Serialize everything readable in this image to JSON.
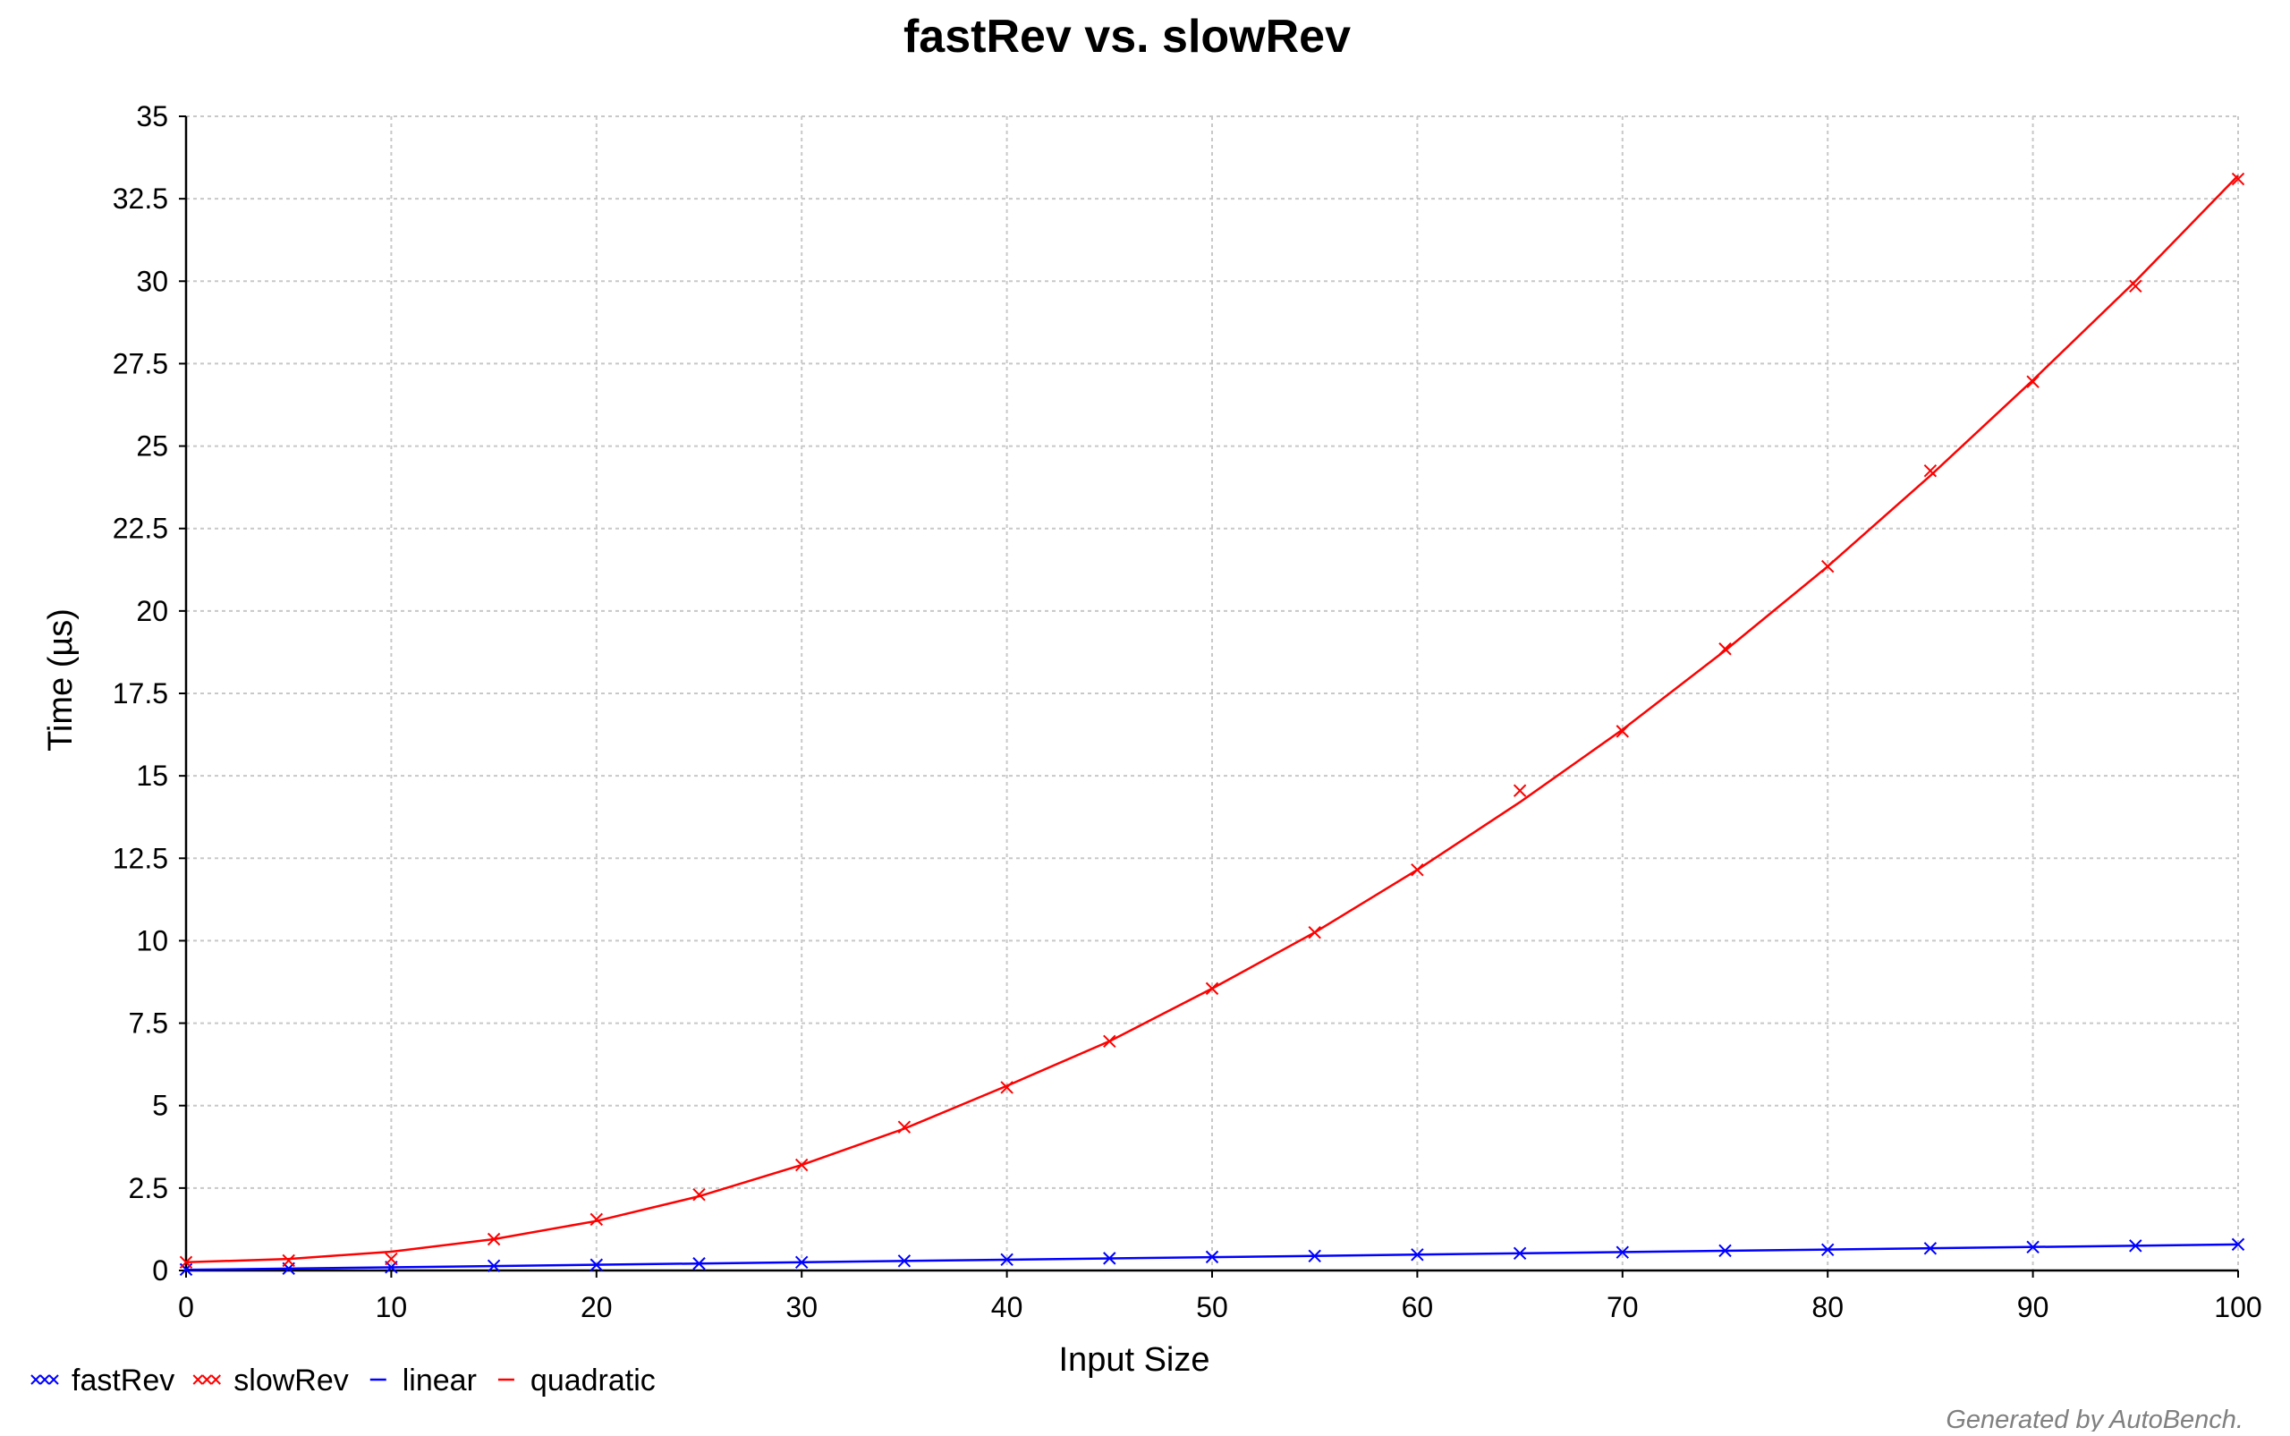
{
  "chart_data": {
    "type": "line",
    "title": "fastRev vs. slowRev",
    "xlabel": "Input Size",
    "ylabel": "Time (µs)",
    "xlim": [
      0,
      100
    ],
    "ylim": [
      0,
      35
    ],
    "x_ticks": [
      0,
      10,
      20,
      30,
      40,
      50,
      60,
      70,
      80,
      90,
      100
    ],
    "x_tick_labels": [
      "0",
      "10",
      "20",
      "30",
      "40",
      "50",
      "60",
      "70",
      "80",
      "90",
      "100"
    ],
    "y_ticks": [
      0,
      2.5,
      5,
      7.5,
      10,
      12.5,
      15,
      17.5,
      20,
      22.5,
      25,
      27.5,
      30,
      32.5,
      35
    ],
    "y_tick_labels": [
      "0",
      "2.5",
      "5",
      "7.5",
      "10",
      "12.5",
      "15",
      "17.5",
      "20",
      "22.5",
      "25",
      "27.5",
      "30",
      "32.5",
      "35"
    ],
    "grid": true,
    "legend_position": "bottom-left",
    "series": [
      {
        "name": "fastRev",
        "kind": "points",
        "marker": "x",
        "color": "#0000ff",
        "x": [
          0,
          5,
          10,
          15,
          20,
          25,
          30,
          35,
          40,
          45,
          50,
          55,
          60,
          65,
          70,
          75,
          80,
          85,
          90,
          95,
          100
        ],
        "y": [
          0.03,
          0.06,
          0.1,
          0.14,
          0.17,
          0.21,
          0.25,
          0.29,
          0.33,
          0.37,
          0.41,
          0.44,
          0.48,
          0.52,
          0.55,
          0.6,
          0.63,
          0.67,
          0.71,
          0.75,
          0.79
        ]
      },
      {
        "name": "slowRev",
        "kind": "points",
        "marker": "x",
        "color": "#ff0000",
        "x": [
          0,
          5,
          10,
          15,
          20,
          25,
          30,
          35,
          40,
          45,
          50,
          55,
          60,
          65,
          70,
          75,
          80,
          85,
          90,
          95,
          100
        ],
        "y": [
          0.25,
          0.3,
          0.35,
          0.95,
          1.55,
          2.3,
          3.2,
          4.35,
          5.55,
          6.95,
          8.55,
          10.25,
          12.15,
          14.55,
          16.35,
          18.85,
          21.35,
          24.25,
          26.95,
          29.85,
          33.1
        ]
      },
      {
        "name": "linear",
        "kind": "fit",
        "color": "#0000ff",
        "x": [
          0,
          100
        ],
        "y": [
          0.02,
          0.79
        ]
      },
      {
        "name": "quadratic",
        "kind": "fit",
        "color": "#ff0000",
        "x": [
          0,
          5,
          10,
          15,
          20,
          25,
          30,
          35,
          40,
          45,
          50,
          55,
          60,
          65,
          70,
          75,
          80,
          85,
          90,
          95,
          100
        ],
        "y": [
          0.25,
          0.35,
          0.57,
          0.95,
          1.5,
          2.25,
          3.2,
          4.3,
          5.6,
          6.95,
          8.55,
          10.25,
          12.15,
          14.2,
          16.4,
          18.8,
          21.35,
          24.1,
          27.0,
          30.0,
          33.2
        ]
      }
    ]
  },
  "footer": {
    "credit": "Generated by AutoBench."
  }
}
